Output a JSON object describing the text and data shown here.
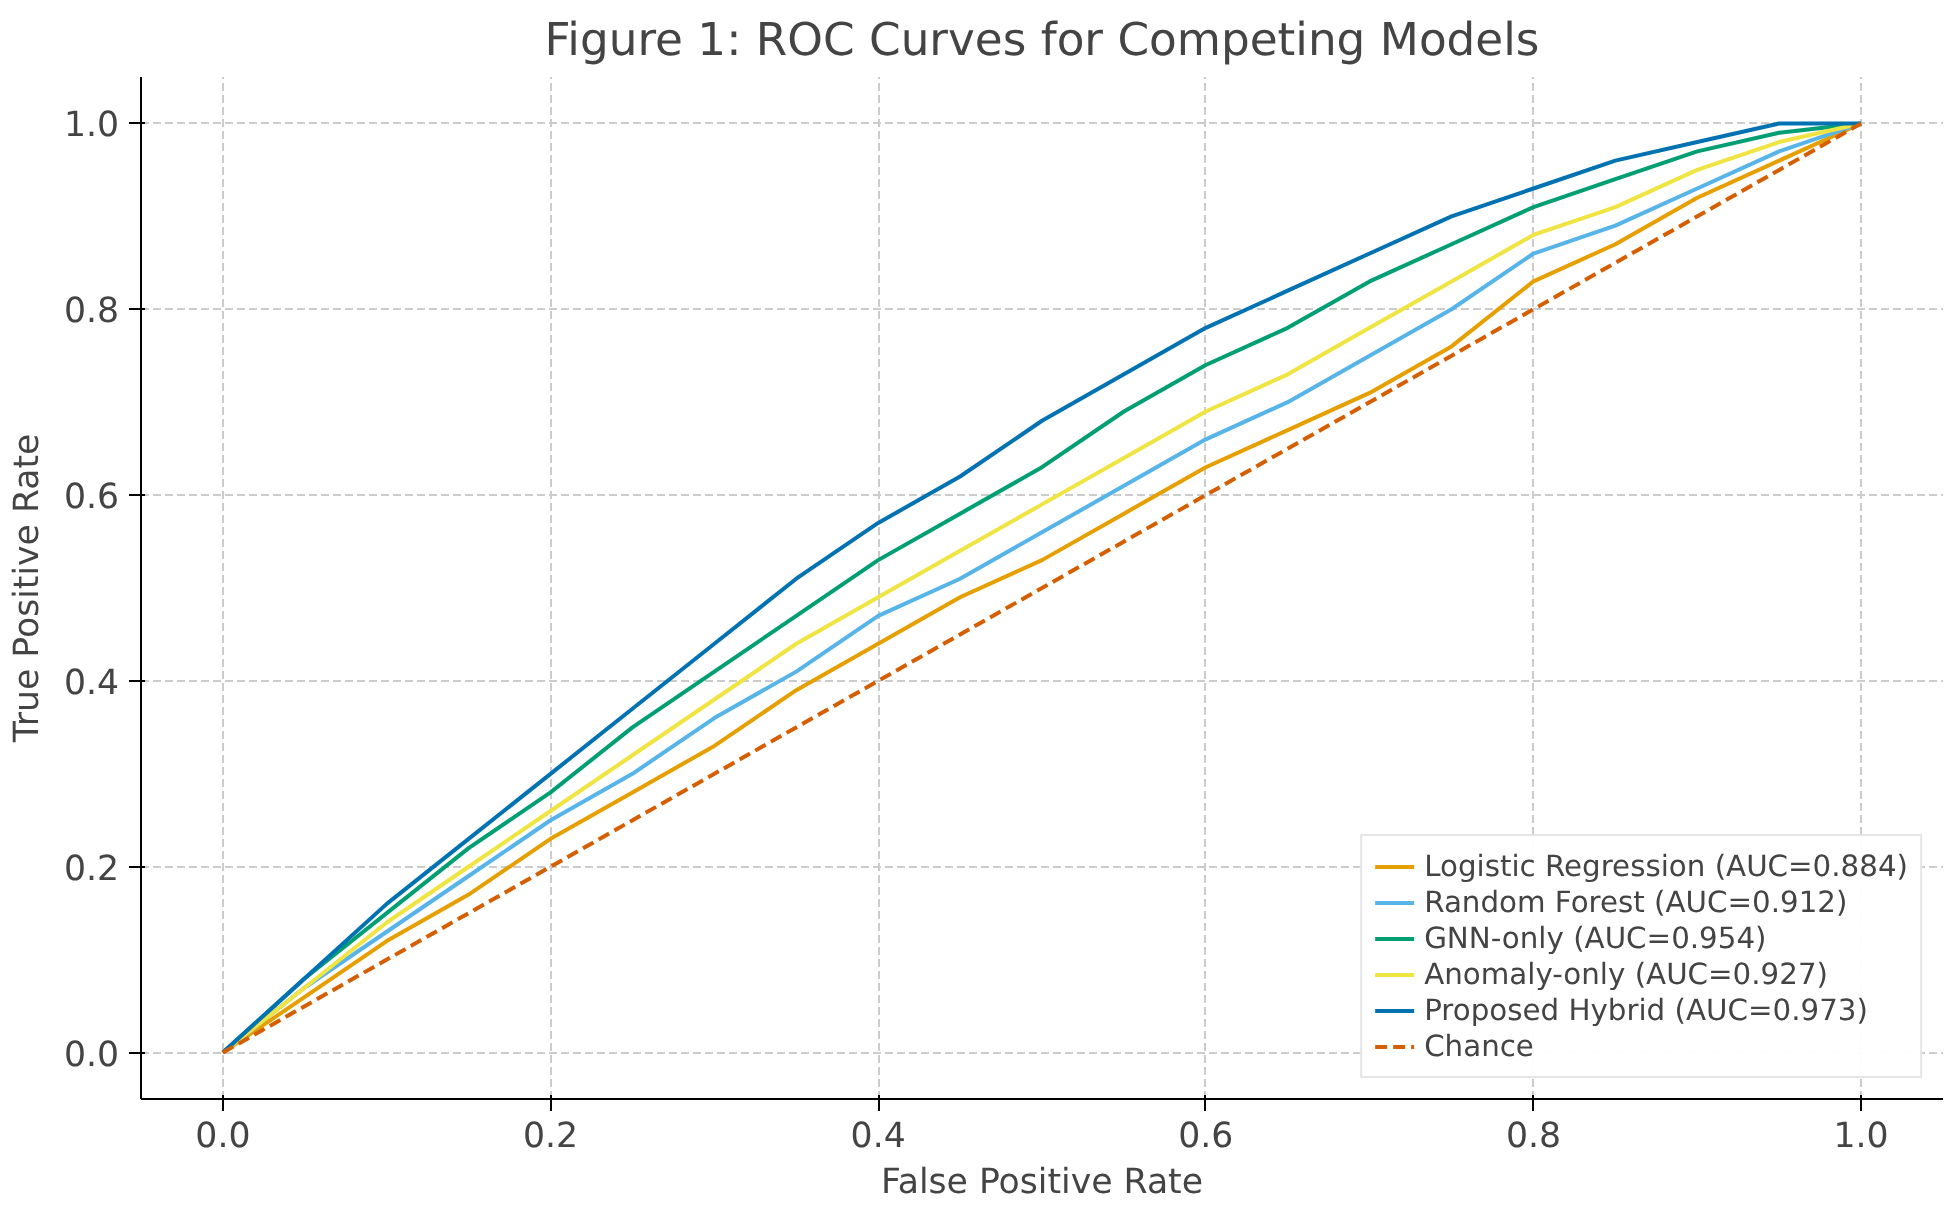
{
  "chart_data": {
    "type": "line",
    "title": "Figure 1: ROC Curves for Competing Models",
    "xlabel": "False Positive Rate",
    "ylabel": "True Positive Rate",
    "x": [
      0,
      0.05,
      0.1,
      0.15,
      0.2,
      0.25,
      0.3,
      0.35,
      0.4,
      0.45,
      0.5,
      0.55,
      0.6,
      0.65,
      0.7,
      0.75,
      0.8,
      0.85,
      0.9,
      0.95,
      1.0
    ],
    "series": [
      {
        "name": "Logistic Regression (AUC=0.884)",
        "color": "#e69f00",
        "values": [
          0,
          0.06,
          0.12,
          0.17,
          0.23,
          0.28,
          0.33,
          0.39,
          0.44,
          0.49,
          0.53,
          0.58,
          0.63,
          0.67,
          0.71,
          0.76,
          0.83,
          0.87,
          0.92,
          0.96,
          1.0
        ]
      },
      {
        "name": "Random Forest (AUC=0.912)",
        "color": "#56b4e9",
        "values": [
          0,
          0.07,
          0.13,
          0.19,
          0.25,
          0.3,
          0.36,
          0.41,
          0.47,
          0.51,
          0.56,
          0.61,
          0.66,
          0.7,
          0.75,
          0.8,
          0.86,
          0.89,
          0.93,
          0.97,
          1.0
        ]
      },
      {
        "name": "GNN-only (AUC=0.954)",
        "color": "#009e73",
        "values": [
          0,
          0.08,
          0.15,
          0.22,
          0.28,
          0.35,
          0.41,
          0.47,
          0.53,
          0.58,
          0.63,
          0.69,
          0.74,
          0.78,
          0.83,
          0.87,
          0.91,
          0.94,
          0.97,
          0.99,
          1.0
        ]
      },
      {
        "name": "Anomaly-only (AUC=0.927)",
        "color": "#f0e442",
        "values": [
          0,
          0.07,
          0.14,
          0.2,
          0.26,
          0.32,
          0.38,
          0.44,
          0.49,
          0.54,
          0.59,
          0.64,
          0.69,
          0.73,
          0.78,
          0.83,
          0.88,
          0.91,
          0.95,
          0.98,
          1.0
        ]
      },
      {
        "name": "Proposed Hybrid (AUC=0.973)",
        "color": "#0072b2",
        "values": [
          0,
          0.08,
          0.16,
          0.23,
          0.3,
          0.37,
          0.44,
          0.51,
          0.57,
          0.62,
          0.68,
          0.73,
          0.78,
          0.82,
          0.86,
          0.9,
          0.93,
          0.96,
          0.98,
          1.0,
          1.0
        ]
      },
      {
        "name": "Chance",
        "color": "#d55e00",
        "line_style": "dashed",
        "x": [
          0,
          1
        ],
        "values": [
          0,
          1
        ]
      }
    ],
    "xlim": [
      -0.05,
      1.05
    ],
    "ylim": [
      -0.05,
      1.05
    ],
    "xticks": [
      {
        "value": 0,
        "label": "0.0"
      },
      0.2,
      0.4,
      0.6,
      0.8,
      {
        "value": 1,
        "label": "1.0"
      }
    ],
    "yticks": [
      {
        "value": 0,
        "label": "0.0"
      },
      0.2,
      0.4,
      0.6,
      0.8,
      {
        "value": 1,
        "label": "1.0"
      }
    ],
    "grid": true,
    "legend": "bottom right",
    "line_style": "solid",
    "marker": "none"
  }
}
